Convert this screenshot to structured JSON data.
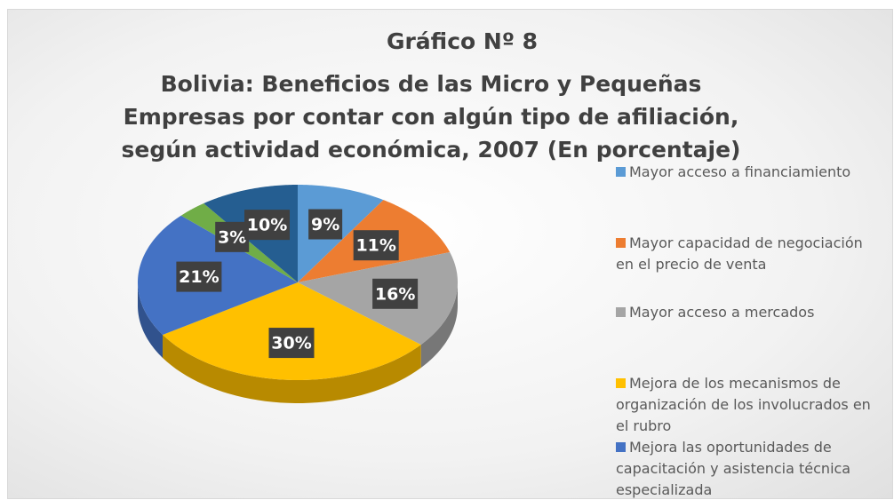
{
  "chart_data": {
    "type": "pie",
    "title": "Gráfico Nº 8",
    "subtitle": "Bolivia: Beneficios de las Micro y Pequeñas Empresas por contar con algún tipo de afiliación, según actividad económica, 2007 (En porcentaje)",
    "categories": [
      "Mayor acceso a financiamiento",
      "Mayor capacidad de negociación en el precio de venta",
      "Mayor acceso a mercados",
      "Mejora de los mecanismos de organización de los involucrados en el rubro",
      "Mejora las oportunidades de capacitación y asistencia técnica especializada",
      null,
      null
    ],
    "values": [
      9,
      11,
      16,
      30,
      21,
      3,
      10
    ],
    "value_labels": [
      "9%",
      "11%",
      "16%",
      "30%",
      "21%",
      "3%",
      "10%"
    ],
    "colors": [
      "#5b9bd5",
      "#ed7d31",
      "#a5a5a5",
      "#ffc000",
      "#4472c4",
      "#70ad47",
      "#255e91"
    ],
    "legend": "right"
  }
}
